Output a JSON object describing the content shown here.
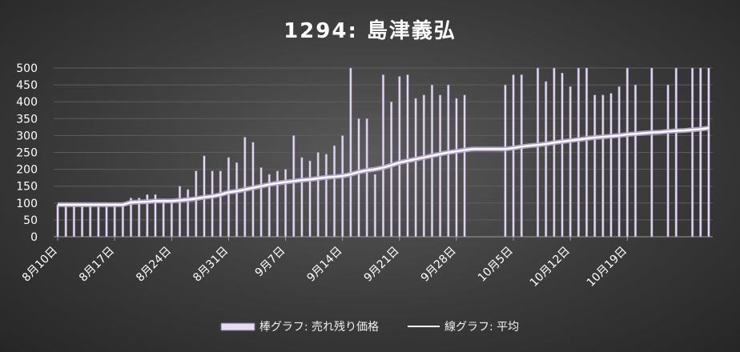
{
  "chart_data": {
    "type": "bar",
    "title": "1294: 島津義弘",
    "ylim": [
      0,
      500
    ],
    "y_ticks": [
      "0",
      "50",
      "100",
      "150",
      "200",
      "250",
      "300",
      "350",
      "400",
      "450",
      "500"
    ],
    "x_tick_labels": [
      "8月10日",
      "8月17日",
      "8月24日",
      "8月31日",
      "9月7日",
      "9月14日",
      "9月21日",
      "9月28日",
      "10月5日",
      "10月12日",
      "10月19日"
    ],
    "grid": true,
    "legend_position": "bottom",
    "start_date": "2020-08-10",
    "bar_day_offsets": [
      0,
      1,
      2,
      3,
      4,
      5,
      6,
      7,
      8,
      9,
      10,
      11,
      12,
      13,
      14,
      15,
      16,
      17,
      18,
      19,
      20,
      21,
      22,
      23,
      24,
      25,
      26,
      27,
      28,
      29,
      30,
      31,
      32,
      33,
      34,
      35,
      36,
      37,
      38,
      39,
      40,
      41,
      42,
      43,
      44,
      45,
      46,
      47,
      48,
      49,
      50,
      51,
      52,
      53,
      54,
      55,
      56,
      57,
      58,
      59,
      60,
      61,
      62,
      63,
      64,
      65,
      66,
      67,
      68,
      69,
      70,
      71,
      72,
      73,
      74,
      75,
      76,
      77,
      78,
      79,
      80
    ],
    "series": [
      {
        "name": "棒グラフ: 売れ残り価格",
        "type": "bar",
        "color": "#e6dcef",
        "values": [
          95,
          95,
          95,
          95,
          95,
          95,
          95,
          95,
          95,
          115,
          115,
          125,
          125,
          110,
          110,
          150,
          140,
          195,
          240,
          195,
          195,
          235,
          220,
          295,
          280,
          205,
          185,
          195,
          200,
          300,
          235,
          225,
          250,
          245,
          270,
          300,
          500,
          350,
          350,
          185,
          480,
          400,
          475,
          480,
          410,
          420,
          450,
          420,
          450,
          410,
          420,
          null,
          null,
          null,
          null,
          450,
          480,
          480,
          null,
          500,
          460,
          500,
          485,
          445,
          500,
          500,
          420,
          420,
          425,
          445,
          500,
          450,
          null,
          500,
          null,
          450,
          500,
          null,
          500,
          500,
          500
        ]
      },
      {
        "name": "線グラフ: 平均",
        "type": "line",
        "color": "#ffffff",
        "values": [
          95,
          95,
          95,
          95,
          95,
          95,
          95,
          95,
          95,
          102,
          103,
          104,
          106,
          106,
          106,
          108,
          110,
          113,
          117,
          120,
          125,
          132,
          135,
          140,
          145,
          150,
          155,
          159,
          162,
          165,
          168,
          170,
          173,
          176,
          178,
          180,
          185,
          192,
          197,
          200,
          205,
          212,
          220,
          225,
          230,
          235,
          240,
          245,
          250,
          253,
          257,
          260,
          260,
          260,
          260,
          260,
          263,
          267,
          270,
          272,
          275,
          279,
          282,
          285,
          288,
          291,
          294,
          296,
          298,
          300,
          303,
          305,
          307,
          309,
          310,
          312,
          314,
          315,
          317,
          319,
          322
        ]
      }
    ]
  }
}
